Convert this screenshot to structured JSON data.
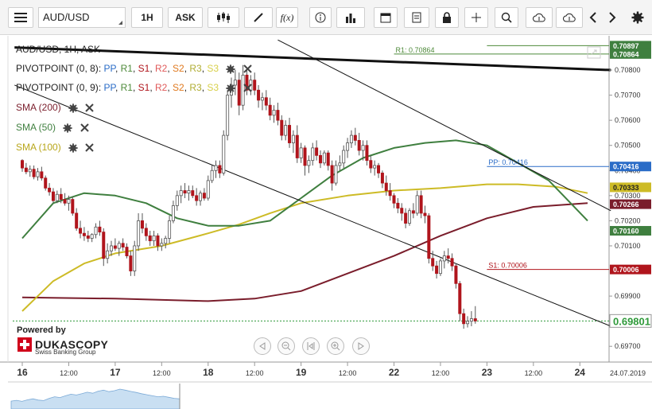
{
  "toolbar": {
    "symbol": "AUD/USD",
    "timeframe": "1H",
    "price_type": "ASK",
    "fx_label": "f(x)",
    "icons": [
      "menu-icon",
      "candles-icon",
      "pencil-icon",
      "fx-icon",
      "info-icon",
      "bars-icon",
      "calendar-icon",
      "report-icon",
      "lock-icon",
      "crosshair-icon",
      "zoom-icon",
      "upload-icon",
      "download-icon",
      "chevron-left-icon",
      "chevron-right-icon",
      "gear-icon"
    ]
  },
  "legend": {
    "instrument": "AUD/USD, 1H, ASK",
    "pivot1": {
      "name": "PIVOTPOINT (0, 8)",
      "sep": ":",
      "pp": "PP",
      "r1": "R1",
      "s1": "S1",
      "r2": "R2",
      "s2": "S2",
      "r3": "R3",
      "s3": "S3"
    },
    "pivot2": {
      "name": "PIVOTPOINT (0, 9)",
      "sep": ":",
      "pp": "PP",
      "r1": "R1",
      "s1": "S1",
      "r2": "R2",
      "s2": "S2",
      "r3": "R3",
      "s3": "S3"
    },
    "sma200": "SMA (200)",
    "sma50": "SMA (50)",
    "sma100": "SMA (100)"
  },
  "branding": {
    "powered_by": "Powered by",
    "name": "DUKASCOPY",
    "sub": "Swiss Banking Group"
  },
  "colors": {
    "bull": "#ffffff",
    "bear": "#b0151c",
    "wick": "#555555",
    "sma200": "#7a1d2b",
    "sma50": "#3f7f3f",
    "sma100": "#cdbb26",
    "pivot_r1": "#4e8a3a",
    "pivot_s1": "#b0151c",
    "pp": "#2a6cc7",
    "r2": "#e05a5a",
    "s2": "#e07a20",
    "r3": "#b0ad33",
    "s3": "#d8d04a",
    "current": "#2f9a3a"
  },
  "chart_data": {
    "type": "candlestick",
    "x_day_labels": [
      {
        "label": "16",
        "hour": 0
      },
      {
        "label": "12:00",
        "hour": 12
      },
      {
        "label": "17",
        "hour": 24
      },
      {
        "label": "12:00",
        "hour": 36
      },
      {
        "label": "18",
        "hour": 48
      },
      {
        "label": "12:00",
        "hour": 60
      },
      {
        "label": "19",
        "hour": 72
      },
      {
        "label": "12:00",
        "hour": 84
      },
      {
        "label": "22",
        "hour": 96
      },
      {
        "label": "12:00",
        "hour": 108
      },
      {
        "label": "23",
        "hour": 120
      },
      {
        "label": "12:00",
        "hour": 132
      },
      {
        "label": "24",
        "hour": 144
      }
    ],
    "x_end_label": "24.07.2019",
    "ylim": [
      0.6965,
      0.7093
    ],
    "y_ticks": [
      "0.69700",
      "0.69900",
      "0.70100",
      "0.70200",
      "0.70300",
      "0.70400",
      "0.70500",
      "0.70600",
      "0.70700",
      "0.70800"
    ],
    "price_tags": [
      {
        "value": 0.70897,
        "label": "0.70897",
        "color": "#3f7f3f",
        "bold": false
      },
      {
        "value": 0.70864,
        "label": "0.70864",
        "color": "#3f7f3f",
        "bold": false
      },
      {
        "value": 0.70416,
        "label": "0.70416",
        "color": "#2a6cc7",
        "bold": false
      },
      {
        "value": 0.70333,
        "label": "0.70333",
        "color": "#cdbb26",
        "bold": false
      },
      {
        "value": 0.70266,
        "label": "0.70266",
        "color": "#7a1d2b",
        "bold": false
      },
      {
        "value": 0.7016,
        "label": "0.70160",
        "color": "#3f7f3f",
        "bold": false
      },
      {
        "value": 0.70006,
        "label": "0.70006",
        "color": "#b0151c",
        "bold": false
      },
      {
        "value": 0.69801,
        "label": "0.69801",
        "color": "#2f9a3a",
        "bold": true
      }
    ],
    "levels": [
      {
        "name": "R1",
        "label": "R1: 0.70864",
        "value": 0.70864,
        "from_hour": 96,
        "color": "#4e8a3a"
      },
      {
        "name": "R1",
        "label": "R1: 0.70897",
        "value": 0.70897,
        "from_hour": 120,
        "color": "#4e8a3a"
      },
      {
        "name": "PP",
        "label": "PP: 0.70416",
        "value": 0.70416,
        "from_hour": 120,
        "color": "#2a6cc7"
      },
      {
        "name": "S1",
        "label": "S1: 0.70006",
        "value": 0.70006,
        "from_hour": 120,
        "color": "#b0151c"
      }
    ],
    "current_price": 0.69801,
    "trendlines": [
      {
        "x1": -2,
        "y1": 0.7089,
        "x2": 152,
        "y2": 0.708,
        "width": 3
      },
      {
        "x1": 66,
        "y1": 0.7092,
        "x2": 152,
        "y2": 0.7024,
        "width": 1
      },
      {
        "x1": -2,
        "y1": 0.7074,
        "x2": 152,
        "y2": 0.6978,
        "width": 1
      }
    ],
    "candles": [
      [
        0.7044,
        0.70445,
        0.70395,
        0.7041
      ],
      [
        0.7041,
        0.7043,
        0.70385,
        0.70395
      ],
      [
        0.70395,
        0.7042,
        0.70375,
        0.70405
      ],
      [
        0.70405,
        0.7042,
        0.70365,
        0.70375
      ],
      [
        0.70375,
        0.7041,
        0.7036,
        0.70395
      ],
      [
        0.70395,
        0.70415,
        0.7036,
        0.7037
      ],
      [
        0.7037,
        0.7038,
        0.7032,
        0.7033
      ],
      [
        0.7033,
        0.7035,
        0.703,
        0.70315
      ],
      [
        0.70315,
        0.7033,
        0.7027,
        0.7028
      ],
      [
        0.7028,
        0.7032,
        0.7027,
        0.70305
      ],
      [
        0.70305,
        0.7033,
        0.7027,
        0.70285
      ],
      [
        0.70285,
        0.7031,
        0.7026,
        0.7027
      ],
      [
        0.7027,
        0.703,
        0.7024,
        0.70285
      ],
      [
        0.70285,
        0.70295,
        0.7022,
        0.7023
      ],
      [
        0.7023,
        0.7025,
        0.7016,
        0.7017
      ],
      [
        0.7017,
        0.702,
        0.7013,
        0.7015
      ],
      [
        0.7015,
        0.70175,
        0.7012,
        0.7014
      ],
      [
        0.7014,
        0.7016,
        0.70115,
        0.7013
      ],
      [
        0.7013,
        0.7015,
        0.70115,
        0.70145
      ],
      [
        0.70145,
        0.7019,
        0.7013,
        0.70175
      ],
      [
        0.70175,
        0.702,
        0.7014,
        0.70155
      ],
      [
        0.70155,
        0.7017,
        0.7002,
        0.7005
      ],
      [
        0.7005,
        0.7011,
        0.7003,
        0.7008
      ],
      [
        0.7008,
        0.7012,
        0.7006,
        0.701
      ],
      [
        0.701,
        0.7013,
        0.7008,
        0.7009
      ],
      [
        0.7009,
        0.7012,
        0.7006,
        0.7011
      ],
      [
        0.7011,
        0.7013,
        0.7008,
        0.70095
      ],
      [
        0.70095,
        0.7011,
        0.7005,
        0.7006
      ],
      [
        0.7006,
        0.7008,
        0.6998,
        0.7
      ],
      [
        0.7,
        0.7012,
        0.6998,
        0.701
      ],
      [
        0.701,
        0.7023,
        0.7008,
        0.702
      ],
      [
        0.702,
        0.7023,
        0.7015,
        0.7017
      ],
      [
        0.7017,
        0.7019,
        0.7012,
        0.7014
      ],
      [
        0.7014,
        0.7016,
        0.701,
        0.7012
      ],
      [
        0.7012,
        0.7016,
        0.701,
        0.7014
      ],
      [
        0.7014,
        0.7015,
        0.7008,
        0.701
      ],
      [
        0.701,
        0.7013,
        0.7008,
        0.7011
      ],
      [
        0.7011,
        0.7014,
        0.7009,
        0.7013
      ],
      [
        0.7013,
        0.7022,
        0.7011,
        0.702
      ],
      [
        0.702,
        0.7028,
        0.7019,
        0.7026
      ],
      [
        0.7026,
        0.7032,
        0.7024,
        0.703
      ],
      [
        0.703,
        0.7034,
        0.7027,
        0.7032
      ],
      [
        0.7032,
        0.7035,
        0.7029,
        0.7031
      ],
      [
        0.7031,
        0.7034,
        0.7028,
        0.7032
      ],
      [
        0.7032,
        0.7034,
        0.7029,
        0.703
      ],
      [
        0.703,
        0.7033,
        0.7026,
        0.7028
      ],
      [
        0.7028,
        0.7032,
        0.7026,
        0.7031
      ],
      [
        0.7031,
        0.7033,
        0.7028,
        0.7029
      ],
      [
        0.7029,
        0.7038,
        0.7028,
        0.7036
      ],
      [
        0.7036,
        0.7042,
        0.7035,
        0.704
      ],
      [
        0.704,
        0.7044,
        0.7037,
        0.7042
      ],
      [
        0.7042,
        0.7044,
        0.7037,
        0.7039
      ],
      [
        0.7039,
        0.7056,
        0.7038,
        0.7054
      ],
      [
        0.7054,
        0.7072,
        0.7052,
        0.707
      ],
      [
        0.707,
        0.7077,
        0.7065,
        0.7074
      ],
      [
        0.7074,
        0.708,
        0.707,
        0.7076
      ],
      [
        0.7076,
        0.7079,
        0.7062,
        0.7066
      ],
      [
        0.7066,
        0.7082,
        0.7064,
        0.7078
      ],
      [
        0.7078,
        0.708,
        0.707,
        0.7072
      ],
      [
        0.7072,
        0.7078,
        0.707,
        0.7076
      ],
      [
        0.7076,
        0.7079,
        0.707,
        0.7072
      ],
      [
        0.7072,
        0.7074,
        0.7065,
        0.7068
      ],
      [
        0.7068,
        0.7071,
        0.7064,
        0.7069
      ],
      [
        0.7069,
        0.7072,
        0.7064,
        0.7066
      ],
      [
        0.7066,
        0.7069,
        0.706,
        0.7062
      ],
      [
        0.7062,
        0.7066,
        0.7059,
        0.7064
      ],
      [
        0.7064,
        0.7067,
        0.7058,
        0.706
      ],
      [
        0.706,
        0.7062,
        0.7052,
        0.7054
      ],
      [
        0.7054,
        0.706,
        0.7052,
        0.7058
      ],
      [
        0.7058,
        0.7061,
        0.7049,
        0.7051
      ],
      [
        0.7051,
        0.7056,
        0.7047,
        0.7054
      ],
      [
        0.7054,
        0.7058,
        0.7043,
        0.7045
      ],
      [
        0.7045,
        0.7051,
        0.7043,
        0.7049
      ],
      [
        0.7049,
        0.705,
        0.7038,
        0.7042
      ],
      [
        0.7042,
        0.7046,
        0.7039,
        0.7044
      ],
      [
        0.7044,
        0.7051,
        0.7042,
        0.7049
      ],
      [
        0.7049,
        0.7052,
        0.7044,
        0.7046
      ],
      [
        0.7046,
        0.7048,
        0.7041,
        0.7043
      ],
      [
        0.7043,
        0.7048,
        0.7042,
        0.7047
      ],
      [
        0.7047,
        0.7048,
        0.704,
        0.7042
      ],
      [
        0.7042,
        0.7044,
        0.7032,
        0.7035
      ],
      [
        0.7035,
        0.7044,
        0.7034,
        0.7042
      ],
      [
        0.7042,
        0.7046,
        0.704,
        0.7043
      ],
      [
        0.7043,
        0.705,
        0.7041,
        0.7048
      ],
      [
        0.7048,
        0.7053,
        0.7045,
        0.7051
      ],
      [
        0.7051,
        0.7056,
        0.7049,
        0.7054
      ],
      [
        0.7054,
        0.7057,
        0.705,
        0.7052
      ],
      [
        0.7052,
        0.7055,
        0.7046,
        0.7048
      ],
      [
        0.7048,
        0.7052,
        0.7044,
        0.705
      ],
      [
        0.705,
        0.7052,
        0.7042,
        0.7044
      ],
      [
        0.7044,
        0.7046,
        0.7039,
        0.7041
      ],
      [
        0.7041,
        0.7044,
        0.7038,
        0.7042
      ],
      [
        0.7042,
        0.7043,
        0.7037,
        0.7039
      ],
      [
        0.7039,
        0.704,
        0.7033,
        0.7035
      ],
      [
        0.7035,
        0.7038,
        0.703,
        0.7032
      ],
      [
        0.7032,
        0.7035,
        0.7028,
        0.703
      ],
      [
        0.703,
        0.7031,
        0.7025,
        0.7027
      ],
      [
        0.7027,
        0.7029,
        0.7023,
        0.7025
      ],
      [
        0.7025,
        0.7027,
        0.702,
        0.7023
      ],
      [
        0.7023,
        0.7025,
        0.7017,
        0.7019
      ],
      [
        0.7019,
        0.7025,
        0.7018,
        0.7024
      ],
      [
        0.7024,
        0.7027,
        0.7021,
        0.7023
      ],
      [
        0.7023,
        0.7032,
        0.7022,
        0.703
      ],
      [
        0.703,
        0.7032,
        0.7021,
        0.7023
      ],
      [
        0.7023,
        0.7026,
        0.7019,
        0.7022
      ],
      [
        0.7022,
        0.7023,
        0.7003,
        0.7005
      ],
      [
        0.7005,
        0.7008,
        0.7,
        0.7002
      ],
      [
        0.7002,
        0.7004,
        0.6997,
        0.6999
      ],
      [
        0.6999,
        0.7005,
        0.6998,
        0.7004
      ],
      [
        0.7004,
        0.7008,
        0.7001,
        0.7006
      ],
      [
        0.7006,
        0.7009,
        0.7003,
        0.7005
      ],
      [
        0.7005,
        0.7007,
        0.7,
        0.7002
      ],
      [
        0.7002,
        0.7003,
        0.6993,
        0.6995
      ],
      [
        0.6995,
        0.6996,
        0.698,
        0.6983
      ],
      [
        0.6983,
        0.6985,
        0.6977,
        0.6979
      ],
      [
        0.6979,
        0.6982,
        0.69775,
        0.698
      ],
      [
        0.698,
        0.6984,
        0.6978,
        0.6981
      ],
      [
        0.6981,
        0.6986,
        0.6979,
        0.69801
      ]
    ],
    "sma200": [
      [
        0,
        0.69895
      ],
      [
        24,
        0.6989
      ],
      [
        48,
        0.6988
      ],
      [
        60,
        0.6989
      ],
      [
        72,
        0.6992
      ],
      [
        84,
        0.6999
      ],
      [
        96,
        0.7006
      ],
      [
        108,
        0.7014
      ],
      [
        120,
        0.7021
      ],
      [
        132,
        0.70255
      ],
      [
        146,
        0.7027
      ]
    ],
    "sma100": [
      [
        0,
        0.6984
      ],
      [
        8,
        0.6996
      ],
      [
        16,
        0.7003
      ],
      [
        24,
        0.7007
      ],
      [
        36,
        0.701
      ],
      [
        48,
        0.7015
      ],
      [
        56,
        0.70185
      ],
      [
        64,
        0.7023
      ],
      [
        72,
        0.7027
      ],
      [
        84,
        0.703
      ],
      [
        96,
        0.7032
      ],
      [
        108,
        0.7033
      ],
      [
        120,
        0.70345
      ],
      [
        128,
        0.70345
      ],
      [
        138,
        0.70335
      ],
      [
        146,
        0.7031
      ]
    ],
    "sma50": [
      [
        0,
        0.7013
      ],
      [
        8,
        0.7027
      ],
      [
        16,
        0.7031
      ],
      [
        24,
        0.703
      ],
      [
        32,
        0.7027
      ],
      [
        40,
        0.7021
      ],
      [
        48,
        0.7018
      ],
      [
        56,
        0.7018
      ],
      [
        64,
        0.702
      ],
      [
        72,
        0.7029
      ],
      [
        80,
        0.7038
      ],
      [
        88,
        0.7045
      ],
      [
        96,
        0.7049
      ],
      [
        104,
        0.7051
      ],
      [
        112,
        0.7052
      ],
      [
        120,
        0.705
      ],
      [
        128,
        0.7043
      ],
      [
        136,
        0.7036
      ],
      [
        146,
        0.702
      ]
    ],
    "navigator": [
      0.31,
      0.34,
      0.3,
      0.36,
      0.4,
      0.35,
      0.33,
      0.42,
      0.48,
      0.45,
      0.52,
      0.58,
      0.55,
      0.6,
      0.66,
      0.62,
      0.7,
      0.74,
      0.68,
      0.72,
      0.78,
      0.74,
      0.69,
      0.65,
      0.6,
      0.56,
      0.52,
      0.48,
      0.5,
      0.46,
      0.42,
      0.4
    ]
  }
}
